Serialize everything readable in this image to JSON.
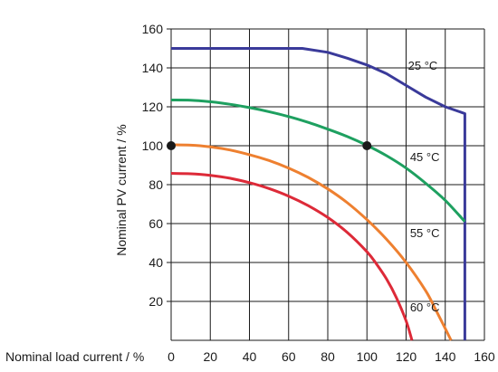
{
  "chart_data": {
    "type": "line",
    "xlabel": "Nominal load current / %",
    "ylabel": "Nominal PV current / %",
    "xlim": [
      0,
      160
    ],
    "ylim": [
      0,
      160
    ],
    "x_ticks": [
      0,
      20,
      40,
      60,
      80,
      100,
      120,
      140,
      160
    ],
    "y_ticks": [
      20,
      40,
      60,
      80,
      100,
      120,
      140,
      160
    ],
    "grid": true,
    "series": [
      {
        "name": "25 °C",
        "color": "#3a3a9a",
        "x": [
          0,
          67,
          80,
          90,
          100,
          110,
          120,
          130,
          140,
          150,
          150
        ],
        "y": [
          150,
          150,
          148,
          145,
          141.5,
          137,
          131,
          125,
          120,
          116.5,
          0
        ]
      },
      {
        "name": "45 °C",
        "color": "#1ea060",
        "x": [
          0,
          10,
          20,
          30,
          40,
          50,
          60,
          70,
          80,
          90,
          100,
          110,
          120,
          130,
          140,
          150
        ],
        "y": [
          123.5,
          123.4,
          122.6,
          121.3,
          119.6,
          117.5,
          115,
          112,
          108.5,
          104.7,
          100.2,
          94.9,
          88.5,
          80.7,
          71.9,
          61
        ]
      },
      {
        "name": "55 °C",
        "color": "#ee8030",
        "x": [
          0,
          10,
          20,
          30,
          40,
          50,
          60,
          70,
          80,
          90,
          100,
          110,
          120,
          130,
          135,
          140,
          143
        ],
        "y": [
          100.5,
          100.3,
          99.4,
          97.8,
          95.4,
          92.4,
          88.5,
          83.7,
          77.8,
          70.7,
          62,
          51.9,
          40,
          25.5,
          16,
          6,
          0
        ]
      },
      {
        "name": "60 °C",
        "color": "#dd2a38",
        "x": [
          0,
          10,
          20,
          30,
          40,
          50,
          60,
          70,
          80,
          90,
          100,
          105,
          110,
          115,
          120,
          123
        ],
        "y": [
          85.8,
          85.6,
          84.8,
          83.3,
          81,
          78,
          74.1,
          69.2,
          63.1,
          55.4,
          45.5,
          39,
          31.5,
          22,
          10,
          0
        ]
      }
    ],
    "points": [
      {
        "x": 0,
        "y": 100
      },
      {
        "x": 100,
        "y": 100
      }
    ],
    "annotations": [
      {
        "text": "25 °C",
        "x": 121,
        "y": 139
      },
      {
        "text": "45 °C",
        "x": 122,
        "y": 92
      },
      {
        "text": "55 °C",
        "x": 122,
        "y": 53
      },
      {
        "text": "60 °C",
        "x": 122,
        "y": 15
      }
    ]
  }
}
